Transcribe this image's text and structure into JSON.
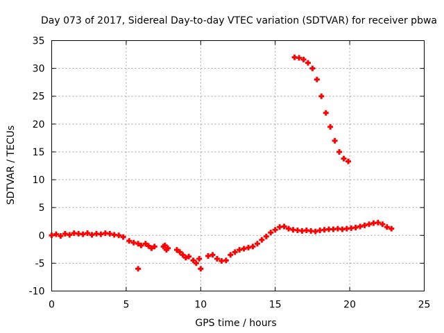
{
  "chart_data": {
    "type": "scatter",
    "title": "Day 073 of 2017, Sidereal Day-to-day VTEC variation (SDTVAR) for receiver pbwa",
    "xlabel": "GPS time / hours",
    "ylabel": "SDTVAR / TECUs",
    "xlim": [
      0,
      25
    ],
    "ylim": [
      -10,
      35
    ],
    "xticks": [
      0,
      5,
      10,
      15,
      20,
      25
    ],
    "yticks": [
      -10,
      -5,
      0,
      5,
      10,
      15,
      20,
      25,
      30,
      35
    ],
    "grid": true,
    "marker": "+",
    "color": "#ff0000",
    "series": [
      {
        "name": "SDTVAR",
        "points": [
          [
            0.0,
            0.0
          ],
          [
            0.3,
            0.2
          ],
          [
            0.6,
            -0.1
          ],
          [
            0.9,
            0.3
          ],
          [
            1.2,
            0.1
          ],
          [
            1.5,
            0.4
          ],
          [
            1.8,
            0.3
          ],
          [
            2.1,
            0.2
          ],
          [
            2.4,
            0.4
          ],
          [
            2.7,
            0.1
          ],
          [
            3.0,
            0.3
          ],
          [
            3.3,
            0.2
          ],
          [
            3.6,
            0.4
          ],
          [
            3.9,
            0.3
          ],
          [
            4.2,
            0.1
          ],
          [
            4.5,
            0.0
          ],
          [
            4.8,
            -0.3
          ],
          [
            5.2,
            -1.0
          ],
          [
            5.5,
            -1.3
          ],
          [
            5.8,
            -1.5
          ],
          [
            5.8,
            -6.0
          ],
          [
            6.0,
            -1.8
          ],
          [
            6.3,
            -1.5
          ],
          [
            6.5,
            -1.9
          ],
          [
            6.7,
            -2.3
          ],
          [
            6.9,
            -2.0
          ],
          [
            7.5,
            -2.0
          ],
          [
            7.6,
            -1.8
          ],
          [
            7.7,
            -2.6
          ],
          [
            7.8,
            -2.3
          ],
          [
            8.4,
            -2.6
          ],
          [
            8.6,
            -3.0
          ],
          [
            8.8,
            -3.5
          ],
          [
            9.0,
            -4.0
          ],
          [
            9.2,
            -3.8
          ],
          [
            9.5,
            -4.5
          ],
          [
            9.7,
            -5.0
          ],
          [
            9.9,
            -4.2
          ],
          [
            10.0,
            -6.0
          ],
          [
            10.5,
            -3.7
          ],
          [
            10.8,
            -3.5
          ],
          [
            11.1,
            -4.2
          ],
          [
            11.4,
            -4.6
          ],
          [
            11.7,
            -4.5
          ],
          [
            12.0,
            -3.5
          ],
          [
            12.3,
            -3.0
          ],
          [
            12.6,
            -2.6
          ],
          [
            12.9,
            -2.4
          ],
          [
            13.2,
            -2.2
          ],
          [
            13.5,
            -2.0
          ],
          [
            13.8,
            -1.5
          ],
          [
            14.1,
            -0.8
          ],
          [
            14.4,
            -0.2
          ],
          [
            14.7,
            0.5
          ],
          [
            15.0,
            1.0
          ],
          [
            15.3,
            1.5
          ],
          [
            15.6,
            1.6
          ],
          [
            15.9,
            1.2
          ],
          [
            16.2,
            1.0
          ],
          [
            16.5,
            0.9
          ],
          [
            16.8,
            0.8
          ],
          [
            17.1,
            0.9
          ],
          [
            17.4,
            0.8
          ],
          [
            17.7,
            0.7
          ],
          [
            18.0,
            0.9
          ],
          [
            18.3,
            1.0
          ],
          [
            18.6,
            1.1
          ],
          [
            18.9,
            1.1
          ],
          [
            19.2,
            1.2
          ],
          [
            19.5,
            1.1
          ],
          [
            19.8,
            1.2
          ],
          [
            20.1,
            1.3
          ],
          [
            20.4,
            1.4
          ],
          [
            20.7,
            1.6
          ],
          [
            21.0,
            1.8
          ],
          [
            21.3,
            2.0
          ],
          [
            21.6,
            2.2
          ],
          [
            21.9,
            2.3
          ],
          [
            22.2,
            2.0
          ],
          [
            22.5,
            1.5
          ],
          [
            22.8,
            1.2
          ],
          [
            16.3,
            32.0
          ],
          [
            16.6,
            31.9
          ],
          [
            16.9,
            31.6
          ],
          [
            17.2,
            31.0
          ],
          [
            17.5,
            30.0
          ],
          [
            17.8,
            28.0
          ],
          [
            18.1,
            25.0
          ],
          [
            18.4,
            22.0
          ],
          [
            18.7,
            19.5
          ],
          [
            19.0,
            17.0
          ],
          [
            19.3,
            15.0
          ],
          [
            19.6,
            13.8
          ],
          [
            19.9,
            13.3
          ]
        ]
      }
    ]
  }
}
